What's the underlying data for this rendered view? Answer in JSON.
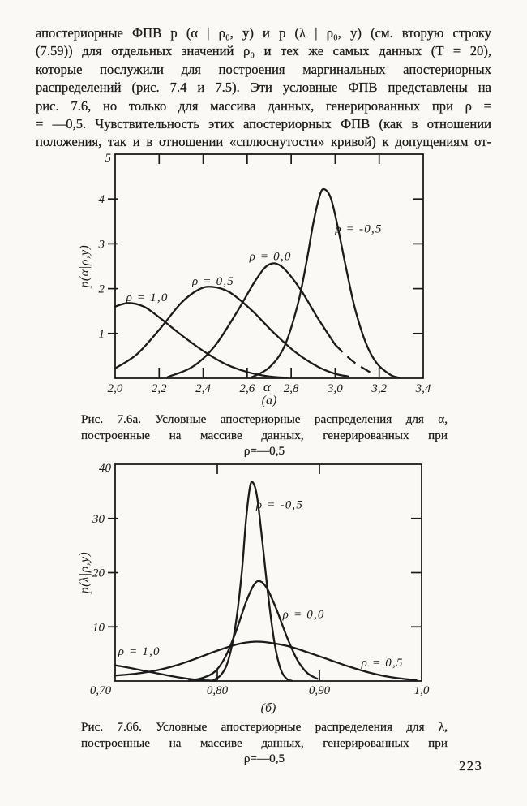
{
  "page": {
    "number": "223",
    "background": "#faf9f5",
    "ink": "#1b1b1b"
  },
  "paragraph": {
    "lines": [
      "апостериорные ФПВ p (α | ρ₀, у) и p (λ | ρ₀, у) (см. вторую строку",
      "(7.59)) для отдельных значений ρ₀ и тех же самых данных (T = 20),",
      "которые послужили для построения маргинальных апостериорных",
      "распределений (рис. 7.4 и 7.5). Эти условные ФПВ представлены на",
      "рис. 7.6, но только для массива данных, генерированных при ρ =",
      "= —0,5. Чувствительность этих апостериорных ФПВ (как в отношении",
      "положения, так и в отношении «сплюснутости» кривой) к допущениям от-"
    ]
  },
  "figure_a": {
    "caption_lines": [
      "Рис. 7.6а. Условные апостериорные распределения для α,",
      "построенные на массиве данных, генерированных при",
      "ρ=—0,5"
    ]
  },
  "figure_b": {
    "caption_lines": [
      "Рис. 7.6б. Условные апостериорные распределения для λ,",
      "построенные на массиве данных, генерированных при",
      "ρ=—0,5"
    ]
  },
  "chart_data": [
    {
      "type": "line",
      "title": "",
      "xlabel": "α",
      "xlabel_x": 2.69,
      "ylabel": "p(α|ρ,y)",
      "sublabel": "(а)",
      "xlim": [
        2.0,
        3.4
      ],
      "ylim": [
        0,
        5
      ],
      "grid": false,
      "legend": "inline-labels",
      "xticks": [
        {
          "v": 2.0,
          "label": "2,0"
        },
        {
          "v": 2.2,
          "label": "2,2"
        },
        {
          "v": 2.4,
          "label": "2,4"
        },
        {
          "v": 2.6,
          "label": "2,6"
        },
        {
          "v": 2.8,
          "label": "2,8"
        },
        {
          "v": 3.0,
          "label": "3,0"
        },
        {
          "v": 3.2,
          "label": "3,2"
        },
        {
          "v": 3.4,
          "label": "3,4"
        }
      ],
      "yticks": [
        {
          "v": 1,
          "label": "1"
        },
        {
          "v": 2,
          "label": "2"
        },
        {
          "v": 3,
          "label": "3"
        },
        {
          "v": 4,
          "label": "4"
        },
        {
          "v": 5,
          "label": "5"
        }
      ],
      "series": [
        {
          "name": "ρ = 1,0",
          "label_pos": [
            2.05,
            1.72
          ],
          "points": [
            [
              2.0,
              1.6
            ],
            [
              2.06,
              1.68
            ],
            [
              2.13,
              1.6
            ],
            [
              2.2,
              1.36
            ],
            [
              2.3,
              0.97
            ],
            [
              2.4,
              0.61
            ],
            [
              2.5,
              0.32
            ],
            [
              2.6,
              0.14
            ],
            [
              2.7,
              0.04
            ],
            [
              2.78,
              0.01
            ]
          ]
        },
        {
          "name": "ρ = 0,5",
          "label_pos": [
            2.35,
            2.08
          ],
          "points": [
            [
              2.0,
              0.22
            ],
            [
              2.1,
              0.54
            ],
            [
              2.2,
              1.08
            ],
            [
              2.3,
              1.68
            ],
            [
              2.38,
              1.98
            ],
            [
              2.44,
              2.04
            ],
            [
              2.52,
              1.92
            ],
            [
              2.62,
              1.52
            ],
            [
              2.72,
              1.02
            ],
            [
              2.82,
              0.58
            ],
            [
              2.92,
              0.26
            ],
            [
              3.0,
              0.1
            ],
            [
              3.06,
              0.04
            ]
          ]
        },
        {
          "name": "ρ = 0,0",
          "label_pos": [
            2.61,
            2.64
          ],
          "dash_from": 3.0,
          "points": [
            [
              2.24,
              0.03
            ],
            [
              2.35,
              0.25
            ],
            [
              2.45,
              0.7
            ],
            [
              2.55,
              1.45
            ],
            [
              2.64,
              2.2
            ],
            [
              2.7,
              2.54
            ],
            [
              2.76,
              2.48
            ],
            [
              2.84,
              2.0
            ],
            [
              2.92,
              1.35
            ],
            [
              3.0,
              0.75
            ],
            [
              3.08,
              0.38
            ],
            [
              3.17,
              0.1
            ]
          ]
        },
        {
          "name": "ρ = -0,5",
          "label_pos": [
            3.0,
            3.25
          ],
          "points": [
            [
              2.62,
              0.02
            ],
            [
              2.7,
              0.24
            ],
            [
              2.77,
              0.72
            ],
            [
              2.83,
              1.65
            ],
            [
              2.87,
              2.6
            ],
            [
              2.9,
              3.45
            ],
            [
              2.93,
              4.08
            ],
            [
              2.95,
              4.22
            ],
            [
              2.98,
              4.02
            ],
            [
              3.01,
              3.42
            ],
            [
              3.05,
              2.45
            ],
            [
              3.09,
              1.55
            ],
            [
              3.14,
              0.78
            ],
            [
              3.19,
              0.33
            ],
            [
              3.25,
              0.08
            ],
            [
              3.29,
              0.01
            ]
          ]
        }
      ]
    },
    {
      "type": "line",
      "title": "",
      "xlabel": "",
      "ylabel": "p(λ|ρ,y)",
      "sublabel": "(б)",
      "xlim": [
        0.7,
        1.0
      ],
      "ylim": [
        0,
        40
      ],
      "grid": false,
      "legend": "inline-labels",
      "xticks": [
        {
          "v": 0.7,
          "label": "0,70",
          "dx": -18
        },
        {
          "v": 0.8,
          "label": "0,80"
        },
        {
          "v": 0.9,
          "label": "0,90"
        },
        {
          "v": 1.0,
          "label": "1,0"
        }
      ],
      "yticks": [
        {
          "v": 10,
          "label": "10"
        },
        {
          "v": 20,
          "label": "20"
        },
        {
          "v": 30,
          "label": "30"
        },
        {
          "v": 40,
          "label": "40"
        }
      ],
      "series": [
        {
          "name": "ρ = 1,0",
          "label_pos": [
            0.703,
            4.8
          ],
          "points": [
            [
              0.7,
              2.9
            ],
            [
              0.712,
              2.5
            ],
            [
              0.725,
              2.0
            ],
            [
              0.74,
              1.45
            ],
            [
              0.755,
              0.9
            ],
            [
              0.77,
              0.45
            ],
            [
              0.785,
              0.15
            ],
            [
              0.798,
              0.03
            ]
          ]
        },
        {
          "name": "ρ = 0,5",
          "label_pos": [
            0.941,
            2.7
          ],
          "points": [
            [
              0.7,
              1.0
            ],
            [
              0.72,
              1.35
            ],
            [
              0.74,
              1.95
            ],
            [
              0.76,
              2.9
            ],
            [
              0.78,
              4.2
            ],
            [
              0.8,
              5.6
            ],
            [
              0.82,
              6.8
            ],
            [
              0.836,
              7.25
            ],
            [
              0.85,
              7.1
            ],
            [
              0.87,
              6.4
            ],
            [
              0.89,
              5.2
            ],
            [
              0.91,
              3.9
            ],
            [
              0.93,
              2.6
            ],
            [
              0.95,
              1.5
            ],
            [
              0.97,
              0.7
            ],
            [
              0.995,
              0.12
            ]
          ]
        },
        {
          "name": "ρ = 0,0",
          "label_pos": [
            0.864,
            11.6
          ],
          "points": [
            [
              0.772,
              0.05
            ],
            [
              0.786,
              0.6
            ],
            [
              0.798,
              1.8
            ],
            [
              0.808,
              4.5
            ],
            [
              0.818,
              9.0
            ],
            [
              0.828,
              14.5
            ],
            [
              0.836,
              17.8
            ],
            [
              0.842,
              18.4
            ],
            [
              0.849,
              17.0
            ],
            [
              0.858,
              13.2
            ],
            [
              0.868,
              8.2
            ],
            [
              0.878,
              4.0
            ],
            [
              0.888,
              1.5
            ],
            [
              0.898,
              0.4
            ]
          ]
        },
        {
          "name": "ρ = -0,5",
          "label_pos": [
            0.838,
            31.8
          ],
          "points": [
            [
              0.795,
              0.05
            ],
            [
              0.804,
              1.2
            ],
            [
              0.811,
              4.0
            ],
            [
              0.818,
              10.5
            ],
            [
              0.824,
              20.0
            ],
            [
              0.828,
              29.5
            ],
            [
              0.832,
              35.8
            ],
            [
              0.835,
              36.6
            ],
            [
              0.839,
              34.0
            ],
            [
              0.844,
              26.0
            ],
            [
              0.85,
              15.5
            ],
            [
              0.856,
              7.0
            ],
            [
              0.862,
              2.2
            ],
            [
              0.868,
              0.4
            ],
            [
              0.873,
              0.05
            ]
          ]
        }
      ]
    }
  ]
}
